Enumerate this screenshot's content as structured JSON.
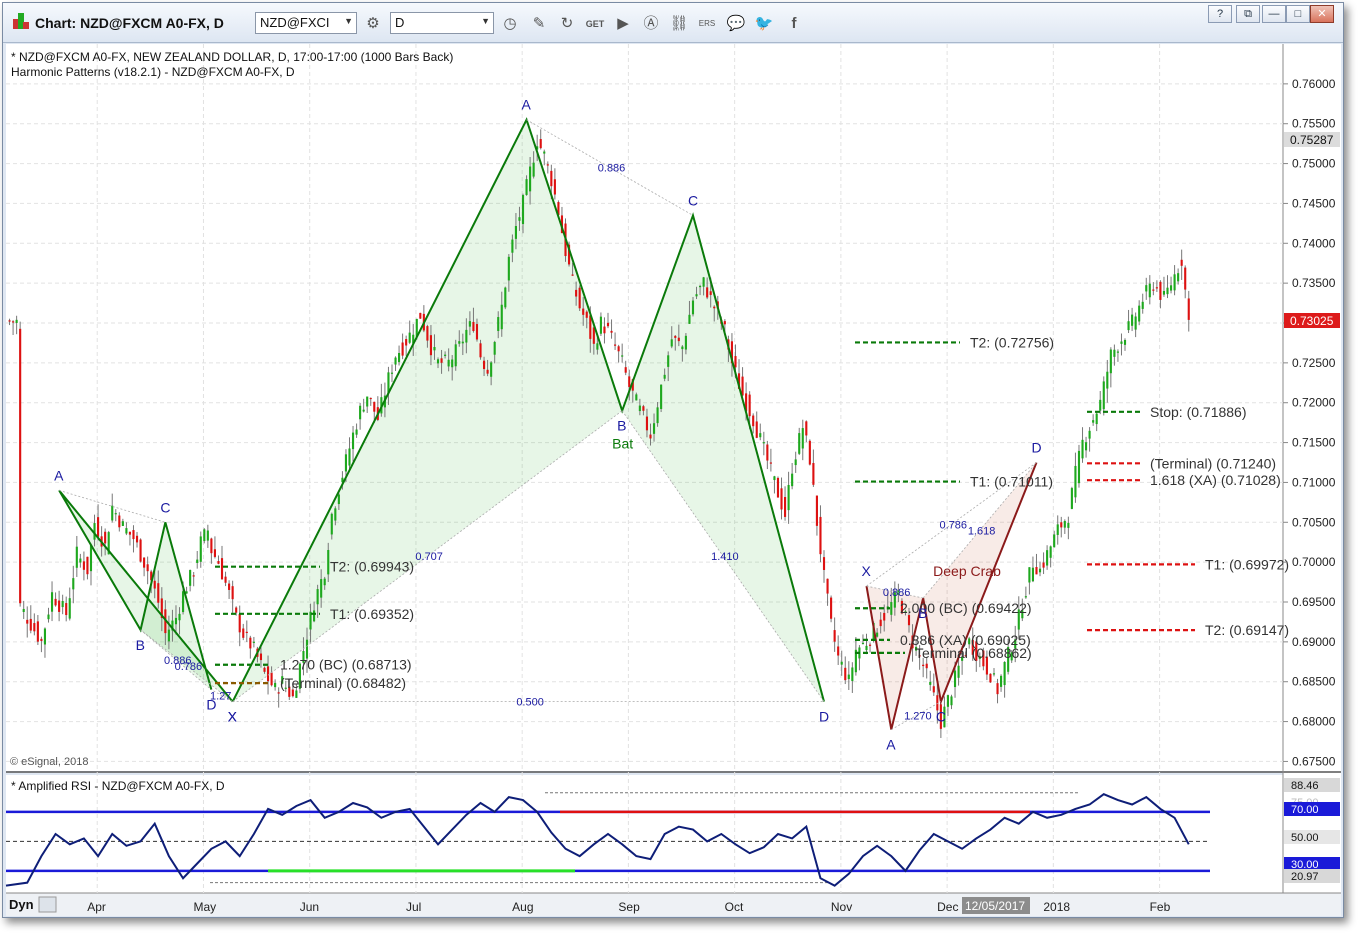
{
  "window": {
    "title": "Chart: NZD@FXCM A0-FX, D",
    "symbol_value": "NZD@FXCI",
    "interval_value": "D",
    "help_label": "?",
    "restore_label": "⧉",
    "minimize_label": "—",
    "maximize_label": "□",
    "close_label": "✕"
  },
  "toolbar_icons": [
    "zoom-icon",
    "draw-icon",
    "refresh-icon",
    "get-icon",
    "play-icon",
    "alert-icon",
    "link-icon",
    "ers-icon",
    "chat-icon",
    "twitter-icon",
    "facebook-icon"
  ],
  "price_panel": {
    "header_line1": "* NZD@FXCM A0-FX, NEW ZEALAND DOLLAR, D, 17:00-17:00 (1000 Bars Back)",
    "header_line2": "Harmonic Patterns (v18.2.1) - NZD@FXCM A0-FX, D",
    "copyright": "© eSignal, 2018",
    "last_price": "0.73025",
    "marker_price": "0.75287"
  },
  "rsi_panel": {
    "header": "* Amplified RSI - NZD@FXCM A0-FX, D",
    "levels": {
      "top": "88.46",
      "upper": "70.00",
      "upper_faded": "75.00",
      "mid": "50.00",
      "lower": "30.00",
      "bottom": "20.97"
    }
  },
  "x_axis": {
    "dyn_label": "Dyn",
    "months": [
      "Apr",
      "May",
      "Jun",
      "Jul",
      "Aug",
      "Sep",
      "Oct",
      "Nov",
      "Dec",
      "2018",
      "Feb"
    ],
    "cursor_date": "12/05/2017"
  },
  "chart_data": {
    "type": "candlestick",
    "symbol": "NZD@FXCM A0-FX",
    "interval": "D",
    "y_axis_ticks": [
      "0.76000",
      "0.75500",
      "0.75000",
      "0.74500",
      "0.74000",
      "0.73500",
      "0.73000",
      "0.72500",
      "0.72000",
      "0.71500",
      "0.71000",
      "0.70500",
      "0.70000",
      "0.69500",
      "0.69000",
      "0.68500",
      "0.68000",
      "0.67500"
    ],
    "ylim": [
      0.6738,
      0.765
    ],
    "close_path": [
      [
        4,
        0.6945
      ],
      [
        10,
        0.69
      ],
      [
        13,
        0.696
      ],
      [
        17,
        0.6935
      ],
      [
        20,
        0.701
      ],
      [
        23,
        0.699
      ],
      [
        25,
        0.705
      ],
      [
        28,
        0.702
      ],
      [
        30,
        0.707
      ],
      [
        33,
        0.7045
      ],
      [
        36,
        0.703
      ],
      [
        40,
        0.699
      ],
      [
        43,
        0.695
      ],
      [
        45,
        0.691
      ],
      [
        48,
        0.693
      ],
      [
        50,
        0.696
      ],
      [
        53,
        0.699
      ],
      [
        55,
        0.7025
      ],
      [
        57,
        0.704
      ],
      [
        58,
        0.7015
      ],
      [
        60,
        0.7
      ],
      [
        63,
        0.696
      ],
      [
        65,
        0.693
      ],
      [
        67,
        0.691
      ],
      [
        70,
        0.689
      ],
      [
        73,
        0.686
      ],
      [
        76,
        0.684
      ],
      [
        78,
        0.685
      ],
      [
        81,
        0.683
      ],
      [
        84,
        0.689
      ],
      [
        87,
        0.695
      ],
      [
        90,
        0.699
      ],
      [
        92,
        0.706
      ],
      [
        95,
        0.711
      ],
      [
        98,
        0.716
      ],
      [
        100,
        0.719
      ],
      [
        102,
        0.721
      ],
      [
        105,
        0.718
      ],
      [
        108,
        0.723
      ],
      [
        110,
        0.726
      ],
      [
        112,
        0.727
      ],
      [
        114,
        0.7285
      ],
      [
        117,
        0.731
      ],
      [
        120,
        0.727
      ],
      [
        122,
        0.725
      ],
      [
        125,
        0.725
      ],
      [
        128,
        0.727
      ],
      [
        130,
        0.729
      ],
      [
        132,
        0.73
      ],
      [
        134,
        0.726
      ],
      [
        136,
        0.724
      ],
      [
        138,
        0.728
      ],
      [
        140,
        0.732
      ],
      [
        142,
        0.738
      ],
      [
        144,
        0.742
      ],
      [
        146,
        0.745
      ],
      [
        148,
        0.749
      ],
      [
        150,
        0.753
      ],
      [
        152,
        0.751
      ],
      [
        154,
        0.748
      ],
      [
        156,
        0.744
      ],
      [
        158,
        0.739
      ],
      [
        160,
        0.735
      ],
      [
        162,
        0.732
      ],
      [
        164,
        0.73
      ],
      [
        166,
        0.727
      ],
      [
        168,
        0.73
      ],
      [
        170,
        0.729
      ],
      [
        172,
        0.727
      ],
      [
        174,
        0.725
      ],
      [
        176,
        0.722
      ],
      [
        178,
        0.72
      ],
      [
        180,
        0.718
      ],
      [
        182,
        0.716
      ],
      [
        185,
        0.722
      ],
      [
        188,
        0.728
      ],
      [
        191,
        0.727
      ],
      [
        194,
        0.733
      ],
      [
        197,
        0.735
      ],
      [
        200,
        0.732
      ],
      [
        203,
        0.729
      ],
      [
        205,
        0.725
      ],
      [
        208,
        0.721
      ],
      [
        211,
        0.718
      ],
      [
        214,
        0.714
      ],
      [
        217,
        0.71
      ],
      [
        220,
        0.706
      ],
      [
        222,
        0.712
      ],
      [
        225,
        0.717
      ],
      [
        227,
        0.713
      ],
      [
        229,
        0.705
      ],
      [
        231,
        0.698
      ],
      [
        233,
        0.692
      ],
      [
        235,
        0.688
      ],
      [
        238,
        0.685
      ],
      [
        240,
        0.689
      ],
      [
        243,
        0.69
      ],
      [
        246,
        0.692
      ],
      [
        249,
        0.694
      ],
      [
        252,
        0.696
      ],
      [
        254,
        0.693
      ],
      [
        256,
        0.69
      ],
      [
        259,
        0.687
      ],
      [
        262,
        0.683
      ],
      [
        264,
        0.68
      ],
      [
        267,
        0.684
      ],
      [
        270,
        0.688
      ],
      [
        272,
        0.69
      ],
      [
        275,
        0.688
      ],
      [
        278,
        0.686
      ],
      [
        280,
        0.684
      ],
      [
        282,
        0.687
      ],
      [
        285,
        0.691
      ],
      [
        287,
        0.695
      ],
      [
        290,
        0.7
      ],
      [
        292,
        0.699
      ],
      [
        295,
        0.702
      ],
      [
        297,
        0.704
      ],
      [
        300,
        0.706
      ],
      [
        302,
        0.711
      ],
      [
        304,
        0.715
      ],
      [
        306,
        0.717
      ],
      [
        309,
        0.72
      ],
      [
        312,
        0.726
      ],
      [
        315,
        0.728
      ],
      [
        318,
        0.73
      ],
      [
        321,
        0.733
      ],
      [
        324,
        0.735
      ],
      [
        327,
        0.733
      ],
      [
        330,
        0.736
      ],
      [
        332,
        0.738
      ],
      [
        334,
        0.7302
      ]
    ],
    "x_range": [
      0,
      340
    ],
    "patterns": [
      {
        "name": "",
        "points": {
          "X": [
            64,
            0.6825
          ],
          "A": [
            15,
            0.709
          ],
          "B": [
            38,
            0.6915
          ],
          "C": [
            45,
            0.705
          ],
          "D": [
            58,
            0.684
          ]
        },
        "ratios": [
          "0.786",
          "1.27",
          "0.886"
        ]
      },
      {
        "name": "Bat",
        "points": {
          "X": [
            64,
            0.6825
          ],
          "A": [
            147,
            0.7555
          ],
          "B": [
            174,
            0.719
          ],
          "C": [
            194,
            0.7435
          ],
          "D": [
            231,
            0.6825
          ]
        },
        "ratios": [
          "0.707",
          "0.500",
          "1.410",
          "0.886"
        ]
      },
      {
        "name": "Deep Crab",
        "points": {
          "X": [
            243,
            0.697
          ],
          "A": [
            250,
            0.679
          ],
          "B": [
            259,
            0.6955
          ],
          "C": [
            264,
            0.6825
          ],
          "D": [
            291,
            0.7125
          ]
        },
        "ratios": [
          "0.886",
          "0.786",
          "1.618",
          "1.270"
        ]
      }
    ],
    "levels": [
      {
        "label": "T2: (0.69943)",
        "value": 0.69943,
        "color": "#0a7a0a"
      },
      {
        "label": "T1: (0.69352)",
        "value": 0.69352,
        "color": "#0a7a0a"
      },
      {
        "label": "1.270 (BC) (0.68713)",
        "value": 0.68713,
        "color": "#0a7a0a"
      },
      {
        "label": "(Terminal) (0.68482)",
        "value": 0.68482,
        "color": "#8a5a00"
      },
      {
        "label": "T2: (0.72756)",
        "value": 0.72756,
        "color": "#0a7a0a"
      },
      {
        "label": "T1: (0.71011)",
        "value": 0.71011,
        "color": "#0a7a0a"
      },
      {
        "label": "2.000 (BC) (0.69422)",
        "value": 0.69422,
        "color": "#0a7a0a"
      },
      {
        "label": "0.886 (XA) (0.69025)",
        "value": 0.69025,
        "color": "#0a7a0a"
      },
      {
        "label": "Terminal (0.68862)",
        "value": 0.68862,
        "color": "#0a7a0a"
      },
      {
        "label": "Stop: (0.71886)",
        "value": 0.71886,
        "color": "#0a7a0a"
      },
      {
        "label": "(Terminal) (0.71240)",
        "value": 0.7124,
        "color": "#dd1111"
      },
      {
        "label": "1.618 (XA) (0.71028)",
        "value": 0.71028,
        "color": "#dd1111"
      },
      {
        "label": "T1: (0.69972)",
        "value": 0.69972,
        "color": "#dd1111"
      },
      {
        "label": "T2: (0.69147)",
        "value": 0.69147,
        "color": "#dd1111"
      }
    ],
    "rsi": {
      "ylim": [
        15,
        95
      ],
      "levels": [
        70,
        50,
        30
      ],
      "path": [
        [
          0,
          20
        ],
        [
          6,
          22
        ],
        [
          10,
          40
        ],
        [
          14,
          55
        ],
        [
          18,
          48
        ],
        [
          22,
          52
        ],
        [
          26,
          40
        ],
        [
          30,
          55
        ],
        [
          34,
          47
        ],
        [
          38,
          50
        ],
        [
          42,
          62
        ],
        [
          46,
          40
        ],
        [
          50,
          25
        ],
        [
          54,
          35
        ],
        [
          58,
          45
        ],
        [
          62,
          50
        ],
        [
          66,
          40
        ],
        [
          70,
          55
        ],
        [
          74,
          72
        ],
        [
          78,
          68
        ],
        [
          82,
          74
        ],
        [
          86,
          78
        ],
        [
          90,
          66
        ],
        [
          94,
          70
        ],
        [
          98,
          76
        ],
        [
          102,
          73
        ],
        [
          106,
          66
        ],
        [
          110,
          70
        ],
        [
          114,
          72
        ],
        [
          118,
          60
        ],
        [
          122,
          48
        ],
        [
          126,
          58
        ],
        [
          130,
          68
        ],
        [
          134,
          76
        ],
        [
          138,
          70
        ],
        [
          142,
          80
        ],
        [
          146,
          78
        ],
        [
          150,
          70
        ],
        [
          154,
          56
        ],
        [
          158,
          45
        ],
        [
          162,
          40
        ],
        [
          166,
          48
        ],
        [
          170,
          55
        ],
        [
          174,
          48
        ],
        [
          178,
          40
        ],
        [
          182,
          38
        ],
        [
          186,
          55
        ],
        [
          190,
          60
        ],
        [
          194,
          58
        ],
        [
          198,
          50
        ],
        [
          202,
          55
        ],
        [
          206,
          48
        ],
        [
          210,
          42
        ],
        [
          214,
          46
        ],
        [
          218,
          55
        ],
        [
          222,
          52
        ],
        [
          226,
          60
        ],
        [
          230,
          25
        ],
        [
          234,
          20
        ],
        [
          238,
          28
        ],
        [
          242,
          40
        ],
        [
          246,
          47
        ],
        [
          250,
          40
        ],
        [
          254,
          30
        ],
        [
          258,
          44
        ],
        [
          262,
          55
        ],
        [
          266,
          50
        ],
        [
          270,
          45
        ],
        [
          274,
          52
        ],
        [
          278,
          58
        ],
        [
          282,
          66
        ],
        [
          286,
          62
        ],
        [
          290,
          70
        ],
        [
          294,
          66
        ],
        [
          298,
          68
        ],
        [
          302,
          72
        ],
        [
          306,
          75
        ],
        [
          310,
          82
        ],
        [
          314,
          78
        ],
        [
          318,
          75
        ],
        [
          322,
          80
        ],
        [
          326,
          72
        ],
        [
          330,
          66
        ],
        [
          334,
          48
        ]
      ]
    }
  }
}
